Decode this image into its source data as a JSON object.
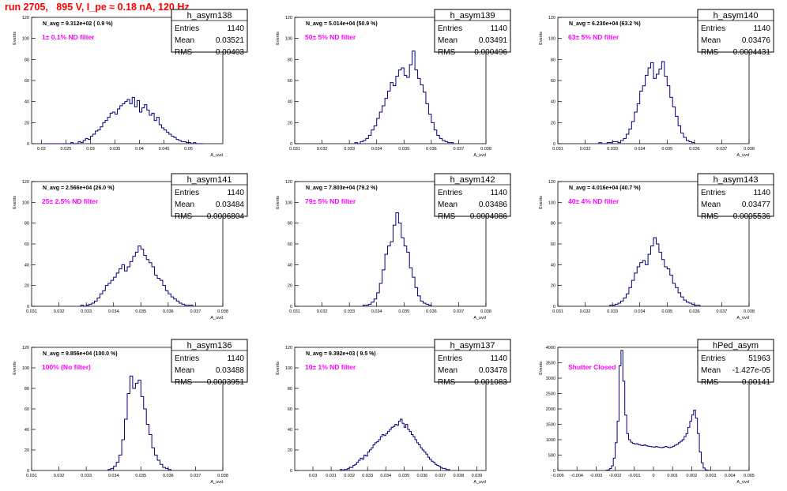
{
  "page_title": "run 2705,   895 V, I_pe ≈ 0.18 nA, 120 Hz",
  "colors": {
    "histogram": "#000080",
    "title": "#ff0000",
    "annotation": "#ff00ff",
    "axis": "#000000"
  },
  "chart_data": [
    {
      "type": "bar",
      "name": "h_asym138",
      "annotation": "N_avg = 9.312e+02 ( 0.9 %)",
      "label": "1± 0.1% ND filter",
      "stats": [
        {
          "key": "Entries",
          "value": "1140"
        },
        {
          "key": "Mean",
          "value": "0.03521"
        },
        {
          "key": "RMS",
          "value": "0.00403"
        }
      ],
      "xlabel": "A_uvd",
      "ylabel": "Events",
      "xlim": [
        0.018,
        0.057
      ],
      "ylim": [
        0,
        120
      ],
      "xticks": [
        0.02,
        0.025,
        0.03,
        0.035,
        0.04,
        0.045,
        0.05
      ],
      "xtick_labels": [
        "0.02",
        "0.025",
        "0.03",
        "0.035",
        "0.04",
        "0.045",
        "0.05"
      ],
      "yticks": [
        0,
        20,
        40,
        60,
        80,
        100,
        120
      ],
      "bin_start": 0.0205,
      "bin_width": 0.0005,
      "values": [
        0,
        0,
        0,
        0,
        0,
        0,
        0,
        0,
        0,
        0,
        0,
        1,
        0,
        0,
        2,
        1,
        3,
        5,
        4,
        7,
        9,
        12,
        13,
        16,
        20,
        22,
        25,
        29,
        30,
        28,
        33,
        36,
        38,
        40,
        42,
        38,
        44,
        35,
        41,
        30,
        34,
        37,
        32,
        27,
        29,
        22,
        25,
        18,
        15,
        13,
        11,
        9,
        7,
        6,
        4,
        3,
        2,
        2,
        1,
        1,
        0,
        1,
        0,
        0,
        0
      ]
    },
    {
      "type": "bar",
      "name": "h_asym139",
      "annotation": "N_avg = 5.014e+04 (50.9 %)",
      "label": "50± 5% ND filter",
      "stats": [
        {
          "key": "Entries",
          "value": "1140"
        },
        {
          "key": "Mean",
          "value": "0.03491"
        },
        {
          "key": "RMS",
          "value": "0.000496"
        }
      ],
      "xlabel": "A_uvd",
      "ylabel": "Events",
      "xlim": [
        0.031,
        0.038
      ],
      "ylim": [
        0,
        120
      ],
      "xticks": [
        0.031,
        0.032,
        0.033,
        0.034,
        0.035,
        0.036,
        0.037,
        0.038
      ],
      "xtick_labels": [
        "0.031",
        "0.032",
        "0.033",
        "0.034",
        "0.035",
        "0.036",
        "0.037",
        "0.038"
      ],
      "yticks": [
        0,
        20,
        40,
        60,
        80,
        100,
        120
      ],
      "bin_start": 0.0332,
      "bin_width": 0.0001,
      "values": [
        1,
        0,
        2,
        3,
        5,
        8,
        13,
        17,
        24,
        30,
        36,
        43,
        50,
        58,
        55,
        64,
        70,
        72,
        65,
        63,
        75,
        88,
        70,
        62,
        56,
        49,
        38,
        28,
        20,
        13,
        8,
        5,
        3,
        2,
        1,
        1
      ]
    },
    {
      "type": "bar",
      "name": "h_asym140",
      "annotation": "N_avg = 6.230e+04 (63.2 %)",
      "label": "63± 5% ND filter",
      "stats": [
        {
          "key": "Entries",
          "value": "1140"
        },
        {
          "key": "Mean",
          "value": "0.03476"
        },
        {
          "key": "RMS",
          "value": "0.0004431"
        }
      ],
      "xlabel": "A_uvd",
      "ylabel": "Events",
      "xlim": [
        0.031,
        0.038
      ],
      "ylim": [
        0,
        120
      ],
      "xticks": [
        0.031,
        0.032,
        0.033,
        0.034,
        0.035,
        0.036,
        0.037,
        0.038
      ],
      "xtick_labels": [
        "0.031",
        "0.032",
        "0.033",
        "0.034",
        "0.035",
        "0.036",
        "0.037",
        "0.038"
      ],
      "yticks": [
        0,
        20,
        40,
        60,
        80,
        100,
        120
      ],
      "bin_start": 0.0325,
      "bin_width": 0.0001,
      "values": [
        1,
        0,
        0,
        1,
        1,
        2,
        2,
        1,
        3,
        5,
        9,
        14,
        21,
        30,
        38,
        50,
        55,
        65,
        72,
        77,
        62,
        66,
        71,
        78,
        64,
        55,
        44,
        35,
        26,
        17,
        10,
        6,
        3,
        2,
        1
      ]
    },
    {
      "type": "bar",
      "name": "h_asym141",
      "annotation": "N_avg = 2.566e+04 (26.0 %)",
      "label": "25± 2.5% ND filter",
      "stats": [
        {
          "key": "Entries",
          "value": "1140"
        },
        {
          "key": "Mean",
          "value": "0.03484"
        },
        {
          "key": "RMS",
          "value": "0.0006804"
        }
      ],
      "xlabel": "A_uvd",
      "ylabel": "Events",
      "xlim": [
        0.031,
        0.038
      ],
      "ylim": [
        0,
        120
      ],
      "xticks": [
        0.031,
        0.032,
        0.033,
        0.034,
        0.035,
        0.036,
        0.037,
        0.038
      ],
      "xtick_labels": [
        "0.031",
        "0.032",
        "0.033",
        "0.034",
        "0.035",
        "0.036",
        "0.037",
        "0.038"
      ],
      "yticks": [
        0,
        20,
        40,
        60,
        80,
        100,
        120
      ],
      "bin_start": 0.0328,
      "bin_width": 0.0001,
      "values": [
        1,
        0,
        1,
        2,
        3,
        5,
        8,
        12,
        15,
        20,
        22,
        25,
        28,
        32,
        36,
        40,
        34,
        38,
        43,
        48,
        52,
        58,
        55,
        49,
        45,
        42,
        38,
        30,
        27,
        25,
        20,
        15,
        12,
        9,
        7,
        5,
        3,
        2,
        1,
        1,
        1
      ]
    },
    {
      "type": "bar",
      "name": "h_asym142",
      "annotation": "N_avg = 7.803e+04 (79.2 %)",
      "label": "79± 5% ND filter",
      "stats": [
        {
          "key": "Entries",
          "value": "1140"
        },
        {
          "key": "Mean",
          "value": "0.03486"
        },
        {
          "key": "RMS",
          "value": "0.0004086"
        }
      ],
      "xlabel": "A_uvd",
      "ylabel": "Events",
      "xlim": [
        0.031,
        0.038
      ],
      "ylim": [
        0,
        120
      ],
      "xticks": [
        0.031,
        0.032,
        0.033,
        0.034,
        0.035,
        0.036,
        0.037,
        0.038
      ],
      "xtick_labels": [
        "0.031",
        "0.032",
        "0.033",
        "0.034",
        "0.035",
        "0.036",
        "0.037",
        "0.038"
      ],
      "yticks": [
        0,
        20,
        40,
        60,
        80,
        100,
        120
      ],
      "bin_start": 0.0335,
      "bin_width": 0.0001,
      "values": [
        1,
        1,
        2,
        4,
        7,
        13,
        22,
        35,
        50,
        58,
        62,
        78,
        90,
        80,
        66,
        58,
        52,
        37,
        28,
        18,
        10,
        5,
        3,
        2,
        1
      ]
    },
    {
      "type": "bar",
      "name": "h_asym143",
      "annotation": "N_avg = 4.016e+04 (40.7 %)",
      "label": "40± 4% ND filter",
      "stats": [
        {
          "key": "Entries",
          "value": "1140"
        },
        {
          "key": "Mean",
          "value": "0.03477"
        },
        {
          "key": "RMS",
          "value": "0.0005536"
        }
      ],
      "xlabel": "A_uvd",
      "ylabel": "Events",
      "xlim": [
        0.031,
        0.038
      ],
      "ylim": [
        0,
        120
      ],
      "xticks": [
        0.031,
        0.032,
        0.033,
        0.034,
        0.035,
        0.036,
        0.037,
        0.038
      ],
      "xtick_labels": [
        "0.031",
        "0.032",
        "0.033",
        "0.034",
        "0.035",
        "0.036",
        "0.037",
        "0.038"
      ],
      "yticks": [
        0,
        20,
        40,
        60,
        80,
        100,
        120
      ],
      "bin_start": 0.0329,
      "bin_width": 0.0001,
      "values": [
        1,
        1,
        2,
        3,
        5,
        8,
        12,
        18,
        25,
        32,
        38,
        42,
        44,
        40,
        50,
        58,
        66,
        60,
        52,
        45,
        38,
        36,
        30,
        22,
        18,
        13,
        9,
        6,
        4,
        3,
        2,
        1,
        1
      ]
    },
    {
      "type": "bar",
      "name": "h_asym136",
      "annotation": "N_avg = 9.856e+04 (100.0 %)",
      "label": "100% (No filter)",
      "stats": [
        {
          "key": "Entries",
          "value": "1140"
        },
        {
          "key": "Mean",
          "value": "0.03488"
        },
        {
          "key": "RMS",
          "value": "0.0003951"
        }
      ],
      "xlabel": "A_uvd",
      "ylabel": "Events",
      "xlim": [
        0.031,
        0.038
      ],
      "ylim": [
        0,
        120
      ],
      "xticks": [
        0.031,
        0.032,
        0.033,
        0.034,
        0.035,
        0.036,
        0.037,
        0.038
      ],
      "xtick_labels": [
        "0.031",
        "0.032",
        "0.033",
        "0.034",
        "0.035",
        "0.036",
        "0.037",
        "0.038"
      ],
      "yticks": [
        0,
        20,
        40,
        60,
        80,
        100,
        120
      ],
      "bin_start": 0.0338,
      "bin_width": 0.0001,
      "values": [
        1,
        2,
        4,
        8,
        15,
        30,
        50,
        75,
        92,
        80,
        85,
        88,
        72,
        60,
        45,
        35,
        22,
        15,
        10,
        6,
        3,
        2,
        1
      ]
    },
    {
      "type": "bar",
      "name": "h_asym137",
      "annotation": "N_avg = 9.392e+03 ( 9.5 %)",
      "label": "10± 1% ND filter",
      "stats": [
        {
          "key": "Entries",
          "value": "1140"
        },
        {
          "key": "Mean",
          "value": "0.03478"
        },
        {
          "key": "RMS",
          "value": "0.001083"
        }
      ],
      "xlabel": "A_uvd",
      "ylabel": "Events",
      "xlim": [
        0.029,
        0.0395
      ],
      "ylim": [
        0,
        120
      ],
      "xticks": [
        0.03,
        0.031,
        0.032,
        0.033,
        0.034,
        0.035,
        0.036,
        0.037,
        0.038,
        0.039
      ],
      "xtick_labels": [
        "0.03",
        "0.031",
        "0.032",
        "0.033",
        "0.034",
        "0.035",
        "0.036",
        "0.037",
        "0.038",
        "0.039"
      ],
      "yticks": [
        0,
        20,
        40,
        60,
        80,
        100,
        120
      ],
      "bin_start": 0.0315,
      "bin_width": 0.0001,
      "values": [
        1,
        0,
        1,
        1,
        2,
        3,
        3,
        5,
        6,
        8,
        10,
        12,
        11,
        15,
        14,
        18,
        20,
        22,
        25,
        27,
        28,
        30,
        33,
        35,
        34,
        36,
        38,
        40,
        42,
        43,
        45,
        44,
        48,
        50,
        46,
        42,
        45,
        40,
        38,
        35,
        33,
        30,
        27,
        25,
        22,
        20,
        18,
        16,
        13,
        11,
        9,
        8,
        6,
        5,
        4,
        3,
        2,
        2,
        1,
        1
      ]
    },
    {
      "type": "bar",
      "name": "hPed_asym",
      "annotation": "",
      "label": "Shutter Closed",
      "stats": [
        {
          "key": "Entries",
          "value": "51963"
        },
        {
          "key": "Mean",
          "value": "-1.427e-05"
        },
        {
          "key": "RMS",
          "value": "0.00141"
        }
      ],
      "xlabel": "A_uvd",
      "ylabel": "Events",
      "xlim": [
        -0.005,
        0.005
      ],
      "ylim": [
        0,
        4000
      ],
      "xticks": [
        -0.005,
        -0.004,
        -0.003,
        -0.002,
        -0.001,
        0,
        0.001,
        0.002,
        0.003,
        0.004,
        0.005
      ],
      "xtick_labels": [
        "-0.005",
        "-0.004",
        "-0.003",
        "-0.002",
        "-0.001",
        "0",
        "0.001",
        "0.002",
        "0.003",
        "0.004",
        "0.005"
      ],
      "yticks": [
        0,
        500,
        1000,
        1500,
        2000,
        2500,
        3000,
        3500,
        4000
      ],
      "bin_start": -0.0025,
      "bin_width": 0.0001,
      "values": [
        5,
        20,
        60,
        150,
        400,
        900,
        1600,
        3400,
        3900,
        2900,
        1800,
        1200,
        1000,
        920,
        880,
        860,
        870,
        840,
        820,
        810,
        830,
        800,
        790,
        780,
        770,
        760,
        780,
        760,
        750,
        740,
        760,
        780,
        760,
        740,
        760,
        790,
        820,
        850,
        900,
        950,
        1000,
        1100,
        1200,
        1400,
        1600,
        1800,
        1960,
        1700,
        1200,
        600,
        250,
        80,
        20,
        5
      ]
    }
  ]
}
